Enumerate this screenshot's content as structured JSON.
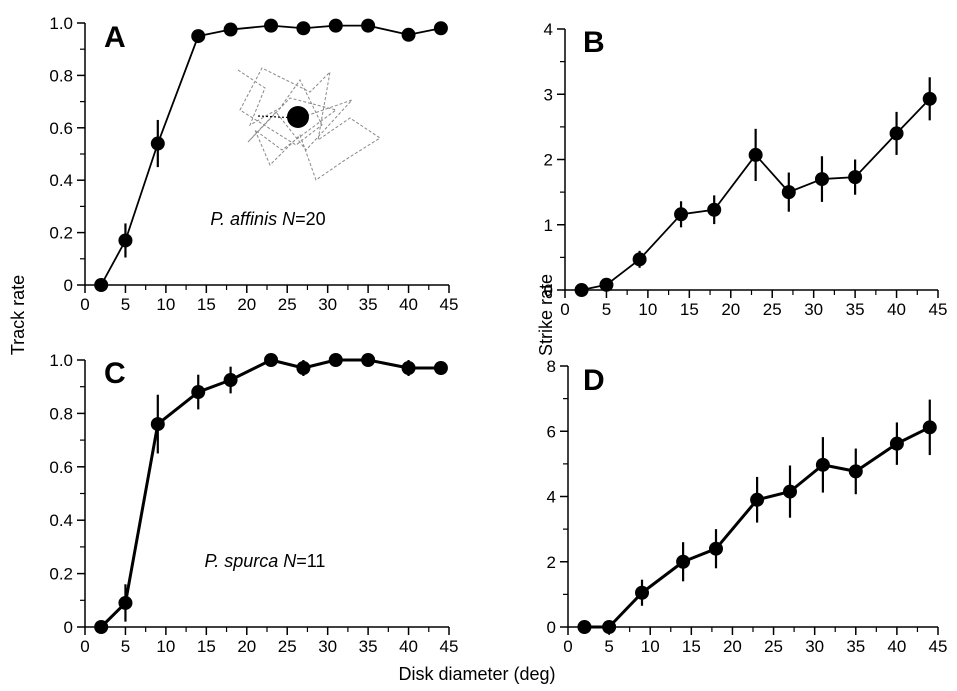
{
  "chart_data": [
    {
      "type": "line",
      "panel_label": "A",
      "xlim": [
        0,
        45
      ],
      "ylim": [
        0,
        1.0
      ],
      "x_ticks": [
        0,
        5,
        10,
        15,
        20,
        25,
        30,
        35,
        40,
        45
      ],
      "y_ticks": [
        0,
        0.2,
        0.4,
        0.6,
        0.8,
        1.0
      ],
      "x_tick_labels": [
        "0",
        "5",
        "10",
        "15",
        "20",
        "25",
        "30",
        "35",
        "40",
        "45"
      ],
      "y_tick_labels": [
        "0",
        "0.2",
        "0.4",
        "0.6",
        "0.8",
        "1.0"
      ],
      "ylabel": "Track rate",
      "annotation": {
        "species": "P. affinis",
        "n_label": "N",
        "n_value": "=20"
      },
      "x": [
        2,
        5,
        9,
        14,
        18,
        23,
        27,
        31,
        35,
        40,
        44
      ],
      "y": [
        0,
        0.17,
        0.54,
        0.95,
        0.975,
        0.99,
        0.98,
        0.99,
        0.99,
        0.955,
        0.98
      ],
      "yerr": [
        0,
        0.065,
        0.09,
        0.015,
        0.015,
        0.01,
        0.015,
        0.01,
        0.01,
        0.015,
        0.01
      ],
      "stroke": "thin",
      "inset": "trajectory-sketch"
    },
    {
      "type": "line",
      "panel_label": "B",
      "xlim": [
        0,
        45
      ],
      "ylim": [
        0,
        4
      ],
      "x_ticks": [
        0,
        5,
        10,
        15,
        20,
        25,
        30,
        35,
        40,
        45
      ],
      "y_ticks": [
        0,
        1,
        2,
        3,
        4
      ],
      "x_tick_labels": [
        "0",
        "5",
        "10",
        "15",
        "20",
        "25",
        "30",
        "35",
        "40",
        "45"
      ],
      "y_tick_labels": [
        "0",
        "1",
        "2",
        "3",
        "4"
      ],
      "ylabel": "Strike rate",
      "x": [
        2,
        5,
        9,
        14,
        18,
        23,
        27,
        31,
        35,
        40,
        44
      ],
      "y": [
        0,
        0.08,
        0.47,
        1.16,
        1.23,
        2.07,
        1.5,
        1.7,
        1.73,
        2.4,
        2.93
      ],
      "yerr": [
        0,
        0.04,
        0.13,
        0.2,
        0.22,
        0.4,
        0.3,
        0.35,
        0.27,
        0.33,
        0.33
      ],
      "stroke": "thin"
    },
    {
      "type": "line",
      "panel_label": "C",
      "xlim": [
        0,
        45
      ],
      "ylim": [
        0,
        1.0
      ],
      "x_ticks": [
        0,
        5,
        10,
        15,
        20,
        25,
        30,
        35,
        40,
        45
      ],
      "y_ticks": [
        0,
        0.2,
        0.4,
        0.6,
        0.8,
        1.0
      ],
      "x_tick_labels": [
        "0",
        "5",
        "10",
        "15",
        "20",
        "25",
        "30",
        "35",
        "40",
        "45"
      ],
      "y_tick_labels": [
        "0",
        "0.2",
        "0.4",
        "0.6",
        "0.8",
        "1.0"
      ],
      "annotation": {
        "species": "P. spurca",
        "n_label": "N",
        "n_value": "=11"
      },
      "x": [
        2,
        5,
        9,
        14,
        18,
        23,
        27,
        31,
        35,
        40,
        44
      ],
      "y": [
        0,
        0.09,
        0.76,
        0.88,
        0.925,
        1.0,
        0.97,
        1.0,
        1.0,
        0.97,
        0.97
      ],
      "yerr": [
        0,
        0.07,
        0.11,
        0.065,
        0.05,
        0,
        0.03,
        0,
        0,
        0.03,
        0.025
      ],
      "stroke": "thick"
    },
    {
      "type": "line",
      "panel_label": "D",
      "xlim": [
        0,
        45
      ],
      "ylim": [
        0,
        8
      ],
      "x_ticks": [
        0,
        5,
        10,
        15,
        20,
        25,
        30,
        35,
        40,
        45
      ],
      "y_ticks": [
        0,
        2,
        4,
        6,
        8
      ],
      "x_tick_labels": [
        "0",
        "5",
        "10",
        "15",
        "20",
        "25",
        "30",
        "35",
        "40",
        "45"
      ],
      "y_tick_labels": [
        "0",
        "2",
        "4",
        "6",
        "8"
      ],
      "x": [
        2,
        5,
        9,
        14,
        18,
        23,
        27,
        31,
        35,
        40,
        44
      ],
      "y": [
        0,
        0,
        1.05,
        2.0,
        2.4,
        3.9,
        4.15,
        4.97,
        4.77,
        5.62,
        6.12
      ],
      "yerr": [
        0,
        0,
        0.4,
        0.6,
        0.6,
        0.7,
        0.8,
        0.85,
        0.7,
        0.65,
        0.85
      ],
      "stroke": "thick"
    }
  ],
  "shared_xlabel": "Disk diameter (deg)",
  "colors": {
    "ink": "#000000",
    "background": "#ffffff",
    "inset": "#888888"
  }
}
